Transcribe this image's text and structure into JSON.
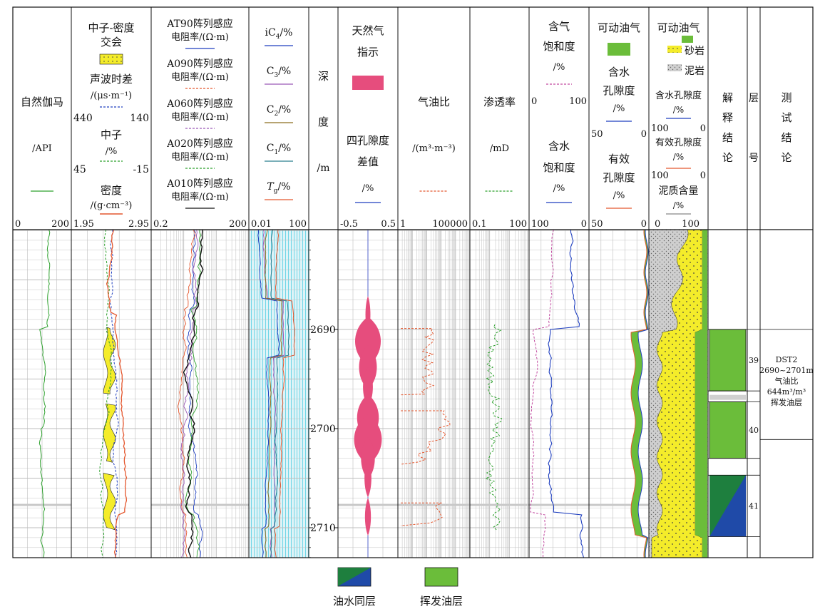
{
  "colors": {
    "grid": "#bdbdbd",
    "gr": "#2ca02c",
    "neutron": "#2ca02c",
    "sonic": "#1f3fbf",
    "density": "#e4572e",
    "yellow": "#f4ec2a",
    "gas": "#e64d7d",
    "green": "#6bbd3a",
    "darkgreen": "#1e7f3e",
    "blue": "#1f4aa8",
    "lightgray": "#cfcfcf",
    "cyan": "#6fd6e6"
  },
  "tracks": {
    "gr": {
      "title": "自然伽马",
      "unit": "/API",
      "left": "0",
      "right": "200"
    },
    "ndx": {
      "title1": "中子-密度",
      "title2": "交会",
      "sonic": "声波时差",
      "sonic_unit": "/(μs·m⁻¹)",
      "sonic_left": "440",
      "sonic_right": "140",
      "neutron": "中子",
      "neutron_unit": "/%",
      "neutron_left": "45",
      "neutron_right": "-15",
      "density": "密度",
      "density_unit": "/(g·cm⁻³)",
      "density_left": "1.95",
      "density_right": "2.95"
    },
    "res": {
      "curves": [
        {
          "name": "AT90阵列感应",
          "unit": "电阻率/(Ω·m)"
        },
        {
          "name": "A090阵列感应",
          "unit": "电阻率/(Ω·m)"
        },
        {
          "name": "A060阵列感应",
          "unit": "电阻率/(Ω·m)"
        },
        {
          "name": "A020阵列感应",
          "unit": "电阻率/(Ω·m)"
        },
        {
          "name": "A010阵列感应",
          "unit": "电阻率/(Ω·m)"
        }
      ],
      "left": "0.2",
      "right": "200"
    },
    "gasc": {
      "curves": [
        {
          "sym": "iC",
          "sub": "4",
          "unit": "/%"
        },
        {
          "sym": "C",
          "sub": "3",
          "unit": "/%"
        },
        {
          "sym": "C",
          "sub": "2",
          "unit": "/%"
        },
        {
          "sym": "C",
          "sub": "1",
          "unit": "/%"
        },
        {
          "sym": "T",
          "sub": "g",
          "unit": "/%"
        }
      ],
      "left": "0.01",
      "right": "100"
    },
    "depth": {
      "title1": "深",
      "title2": "度",
      "unit": "/m"
    },
    "gasind": {
      "title1": "天然气",
      "title2": "指示",
      "sub1": "四孔隙度",
      "sub2": "差值",
      "unit": "/%",
      "left": "-0.5",
      "right": "0.5"
    },
    "gor": {
      "title": "气油比",
      "unit": "/(m³·m⁻³)",
      "left": "1",
      "right": "100000"
    },
    "perm": {
      "title": "渗透率",
      "unit": "/mD",
      "left": "0.1",
      "right": "100"
    },
    "sat": {
      "title1": "含气",
      "title2": "饱和度",
      "unit1": "/%",
      "left1": "0",
      "right1": "100",
      "title3": "含水",
      "title4": "饱和度",
      "unit2": "/%",
      "left2": "100",
      "right2": "0"
    },
    "movable": {
      "title": "可动油气",
      "t2": "含水",
      "t3": "孔隙度",
      "unit": "/%",
      "l1": "50",
      "r1": "0",
      "t4": "有效",
      "t5": "孔隙度",
      "unit2": "/%",
      "l2": "50",
      "r2": "0"
    },
    "litho": {
      "title": "可动油气",
      "sand": "砂岩",
      "shale": "泥岩",
      "wpor": "含水孔隙度",
      "wpor_unit": "/%",
      "wl": "100",
      "wr": "0",
      "epor": "有效孔隙度",
      "epor_unit": "/%",
      "el": "100",
      "er": "0",
      "vsh": "泥质含量",
      "vsh_unit": "/%",
      "vl": "0",
      "vr": "100"
    },
    "interp": {
      "c1": "解",
      "c2": "释",
      "c3": "结",
      "c4": "论"
    },
    "layer": {
      "c1": "层",
      "c2": "号"
    },
    "test": {
      "c1": "测",
      "c2": "试",
      "c3": "结",
      "c4": "论"
    }
  },
  "depth_ticks": [
    "2690",
    "2700",
    "2710"
  ],
  "layers": [
    "39",
    "40",
    "41"
  ],
  "test_result": {
    "l1": "DST2",
    "l2": "2690~2701m",
    "l3": "气油比",
    "l4": "644m³/m³",
    "l5": "挥发油层"
  },
  "legend": {
    "mixed": "油水同层",
    "volatile": "挥发油层"
  },
  "chart_data": {
    "type": "well-log",
    "depth_unit": "m",
    "depth_range": [
      2680,
      2713
    ],
    "depth_ticks": [
      2690,
      2700,
      2710
    ],
    "interpretation": [
      {
        "top": 2690.0,
        "bottom": 2696.2,
        "class": "挥发油层",
        "layer": "39"
      },
      {
        "top": 2697.3,
        "bottom": 2703.0,
        "class": "挥发油层",
        "layer": "40"
      },
      {
        "top": 2704.7,
        "bottom": 2710.9,
        "class": "油水同层",
        "layer": "41"
      }
    ],
    "test": {
      "interval": "2690~2701m",
      "gor": 644,
      "conclusion": "挥发油层"
    },
    "gas_indicator_pulses": [
      {
        "depth": 2688.5,
        "value": 0.05
      },
      {
        "depth": 2691.2,
        "value": 0.26
      },
      {
        "depth": 2693.8,
        "value": 0.18
      },
      {
        "depth": 2695.8,
        "value": 0.1
      },
      {
        "depth": 2698.9,
        "value": 0.22
      },
      {
        "depth": 2701.1,
        "value": 0.28
      },
      {
        "depth": 2703.0,
        "value": 0.14
      },
      {
        "depth": 2705.0,
        "value": 0.07
      },
      {
        "depth": 2708.9,
        "value": 0.06
      }
    ]
  }
}
